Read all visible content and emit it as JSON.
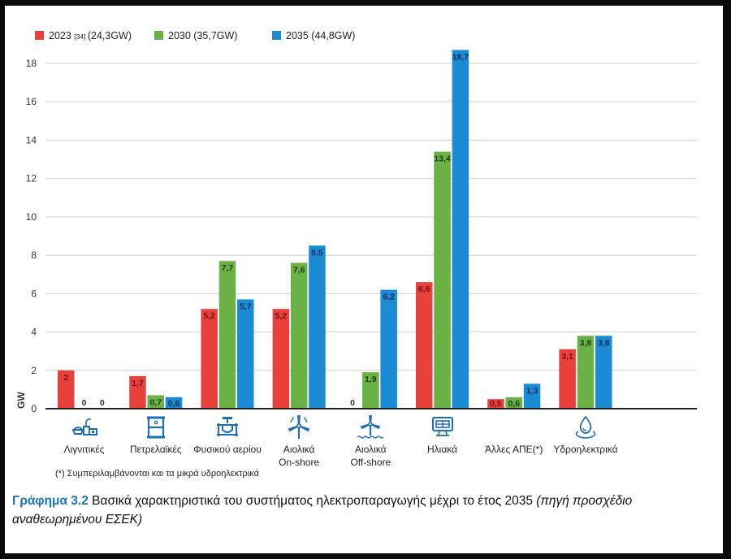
{
  "chart_data": {
    "type": "bar",
    "title": "",
    "xlabel": "",
    "ylabel": "GW",
    "ylim": [
      0,
      18
    ],
    "yticks": [
      "0",
      "2",
      "4",
      "6",
      "8",
      "10",
      "12",
      "14",
      "16",
      "18"
    ],
    "grid": true,
    "legend_position": "top-left",
    "categories": [
      "Λιγνιτικές",
      "Πετρελαϊκές",
      "Φυσικού αερίου",
      "Αιολικά On-shore",
      "Αιολικά Off-shore",
      "Ηλιακά",
      "Άλλες ΑΠΕ(*)",
      "Υδροηλεκτρικά"
    ],
    "category_lines": [
      [
        "Λιγνιτικές"
      ],
      [
        "Πετρελαϊκές"
      ],
      [
        "Φυσικού αερίου"
      ],
      [
        "Αιολικά",
        "On-shore"
      ],
      [
        "Αιολικά",
        "Off-shore"
      ],
      [
        "Ηλιακά"
      ],
      [
        "Άλλες ΑΠΕ(*)"
      ],
      [
        "Υδροηλεκτρικά"
      ]
    ],
    "category_icons": [
      "lignite-plant-icon",
      "oil-barrel-icon",
      "gas-valve-icon",
      "wind-turbine-icon",
      "offshore-wind-turbine-icon",
      "solar-panel-icon",
      "none",
      "water-drop-icon"
    ],
    "series": [
      {
        "name": "2023",
        "ref": "[34]",
        "total": "(24,3GW)",
        "color": "#e8413c",
        "values": [
          2,
          1.7,
          5.2,
          5.2,
          0,
          6.6,
          0.5,
          3.1
        ],
        "labels": [
          "2",
          "1,7",
          "5,2",
          "5,2",
          "0",
          "6,6",
          "0,5",
          "3,1"
        ]
      },
      {
        "name": "2030",
        "ref": "",
        "total": "(35,7GW)",
        "color": "#6ab245",
        "values": [
          0,
          0.7,
          7.7,
          7.6,
          1.9,
          13.4,
          0.6,
          3.8
        ],
        "labels": [
          "0",
          "0,7",
          "7,7",
          "7,6",
          "1,9",
          "13,4",
          "0,6",
          "3,8"
        ]
      },
      {
        "name": "2035",
        "ref": "",
        "total": "(44,8GW)",
        "color": "#1a8bd4",
        "values": [
          0,
          0.6,
          5.7,
          8.5,
          6.2,
          18.7,
          1.3,
          3.8
        ],
        "labels": [
          "0",
          "0,6",
          "5,7",
          "8,5",
          "6,2",
          "18,7",
          "1,3",
          "3,8"
        ]
      }
    ]
  },
  "footnote": "(*) Συμπεριλαμβάνονται και τα μικρά υδροηλεκτρικά",
  "caption": {
    "number": "Γράφημα 3.2",
    "text": " Βασικά χαρακτηριστικά του συστήματος ηλεκτροπαραγωγής μέχρι το έτος 2035 ",
    "source": "(πηγή προσχέδιο αναθεωρημένου ΕΣΕΚ)"
  },
  "colors": {
    "icon": "#1f6db3",
    "caption_accent": "#1a75bc"
  }
}
